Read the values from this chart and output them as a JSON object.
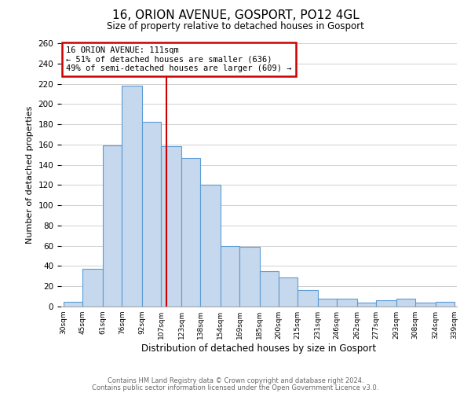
{
  "title": "16, ORION AVENUE, GOSPORT, PO12 4GL",
  "subtitle": "Size of property relative to detached houses in Gosport",
  "xlabel": "Distribution of detached houses by size in Gosport",
  "ylabel": "Number of detached properties",
  "bar_left_edges": [
    30,
    45,
    61,
    76,
    92,
    107,
    123,
    138,
    154,
    169,
    185,
    200,
    215,
    231,
    246,
    262,
    277,
    293,
    308,
    324
  ],
  "bar_widths": [
    15,
    16,
    15,
    16,
    15,
    16,
    15,
    16,
    15,
    16,
    15,
    15,
    16,
    15,
    16,
    15,
    16,
    15,
    16,
    15
  ],
  "bar_heights": [
    5,
    37,
    159,
    218,
    182,
    158,
    147,
    120,
    60,
    59,
    35,
    29,
    16,
    8,
    8,
    4,
    6,
    8,
    4,
    5
  ],
  "bar_color": "#c5d8ed",
  "bar_edge_color": "#5b9bd5",
  "tick_labels": [
    "30sqm",
    "45sqm",
    "61sqm",
    "76sqm",
    "92sqm",
    "107sqm",
    "123sqm",
    "138sqm",
    "154sqm",
    "169sqm",
    "185sqm",
    "200sqm",
    "215sqm",
    "231sqm",
    "246sqm",
    "262sqm",
    "277sqm",
    "293sqm",
    "308sqm",
    "324sqm",
    "339sqm"
  ],
  "ylim": [
    0,
    260
  ],
  "yticks": [
    0,
    20,
    40,
    60,
    80,
    100,
    120,
    140,
    160,
    180,
    200,
    220,
    240,
    260
  ],
  "vline_x": 111,
  "vline_color": "#cc0000",
  "annotation_title": "16 ORION AVENUE: 111sqm",
  "annotation_line1": "← 51% of detached houses are smaller (636)",
  "annotation_line2": "49% of semi-detached houses are larger (609) →",
  "annotation_box_color": "#cc0000",
  "footer1": "Contains HM Land Registry data © Crown copyright and database right 2024.",
  "footer2": "Contains public sector information licensed under the Open Government Licence v3.0.",
  "background_color": "#ffffff",
  "grid_color": "#d0d0d0"
}
